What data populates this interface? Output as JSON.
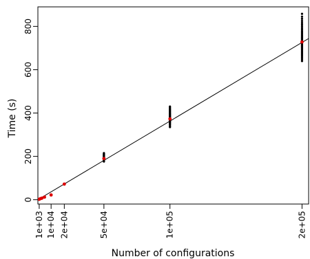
{
  "chart_data": {
    "type": "scatter",
    "title": "",
    "xlabel": "Number of configurations",
    "ylabel": "Time (s)",
    "xlim": [
      0,
      205000
    ],
    "ylim": [
      -20,
      890
    ],
    "grid": false,
    "x_ticks": [
      {
        "value": 1000,
        "label": "1e+03"
      },
      {
        "value": 10000,
        "label": "1e+04"
      },
      {
        "value": 20000,
        "label": "2e+04"
      },
      {
        "value": 50000,
        "label": "5e+04"
      },
      {
        "value": 100000,
        "label": "1e+05"
      },
      {
        "value": 200000,
        "label": "2e+05"
      }
    ],
    "y_ticks": [
      {
        "value": 0,
        "label": "0"
      },
      {
        "value": 200,
        "label": "200"
      },
      {
        "value": 400,
        "label": "400"
      },
      {
        "value": 600,
        "label": "600"
      },
      {
        "value": 800,
        "label": "800"
      }
    ],
    "fit_line": {
      "x": [
        0,
        205000
      ],
      "y": [
        0,
        744
      ]
    },
    "series": [
      {
        "color": "#000000",
        "groups": [
          {
            "x": 50000,
            "values": [
              176,
              180,
              183,
              186,
              188,
              190,
              192,
              194,
              196,
              198,
              200,
              202,
              204,
              206,
              208,
              210,
              212,
              215
            ]
          },
          {
            "x": 100000,
            "values": [
              335,
              340,
              346,
              350,
              354,
              358,
              361,
              364,
              367,
              370,
              373,
              376,
              379,
              382,
              385,
              388,
              391,
              394,
              397,
              400,
              404,
              408,
              412,
              416,
              420,
              425,
              430
            ]
          },
          {
            "x": 200000,
            "values": [
              640,
              648,
              655,
              662,
              668,
              674,
              680,
              686,
              692,
              697,
              702,
              706,
              710,
              714,
              718,
              722,
              726,
              730,
              734,
              738,
              742,
              746,
              750,
              755,
              760,
              766,
              772,
              778,
              785,
              792,
              800,
              808,
              816,
              825,
              835,
              845,
              858
            ]
          }
        ]
      },
      {
        "color": "#dd0000",
        "points": [
          {
            "x": 1000,
            "y": 2
          },
          {
            "x": 2000,
            "y": 5
          },
          {
            "x": 3000,
            "y": 7
          },
          {
            "x": 5000,
            "y": 12
          },
          {
            "x": 10000,
            "y": 22
          },
          {
            "x": 20000,
            "y": 72
          },
          {
            "x": 50000,
            "y": 190
          },
          {
            "x": 100000,
            "y": 373
          },
          {
            "x": 200000,
            "y": 728
          }
        ]
      }
    ]
  }
}
